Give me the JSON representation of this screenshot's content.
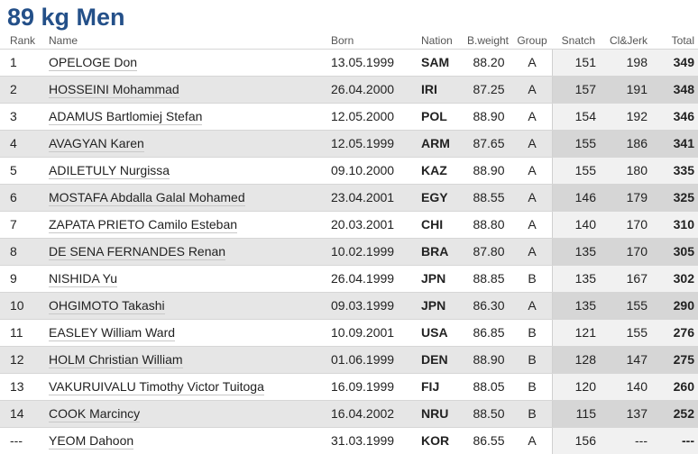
{
  "title": "89 kg Men",
  "table": {
    "columns": [
      "Rank",
      "Name",
      "Born",
      "Nation",
      "B.weight",
      "Group",
      "Snatch",
      "Cl&Jerk",
      "Total"
    ],
    "rows": [
      [
        "1",
        "OPELOGE Don",
        "13.05.1999",
        "SAM",
        "88.20",
        "A",
        "151",
        "198",
        "349"
      ],
      [
        "2",
        "HOSSEINI Mohammad",
        "26.04.2000",
        "IRI",
        "87.25",
        "A",
        "157",
        "191",
        "348"
      ],
      [
        "3",
        "ADAMUS Bartlomiej Stefan",
        "12.05.2000",
        "POL",
        "88.90",
        "A",
        "154",
        "192",
        "346"
      ],
      [
        "4",
        "AVAGYAN Karen",
        "12.05.1999",
        "ARM",
        "87.65",
        "A",
        "155",
        "186",
        "341"
      ],
      [
        "5",
        "ADILETULY Nurgissa",
        "09.10.2000",
        "KAZ",
        "88.90",
        "A",
        "155",
        "180",
        "335"
      ],
      [
        "6",
        "MOSTAFA Abdalla Galal Mohamed",
        "23.04.2001",
        "EGY",
        "88.55",
        "A",
        "146",
        "179",
        "325"
      ],
      [
        "7",
        "ZAPATA PRIETO Camilo Esteban",
        "20.03.2001",
        "CHI",
        "88.80",
        "A",
        "140",
        "170",
        "310"
      ],
      [
        "8",
        "DE SENA FERNANDES Renan",
        "10.02.1999",
        "BRA",
        "87.80",
        "A",
        "135",
        "170",
        "305"
      ],
      [
        "9",
        "NISHIDA Yu",
        "26.04.1999",
        "JPN",
        "88.85",
        "B",
        "135",
        "167",
        "302"
      ],
      [
        "10",
        "OHGIMOTO Takashi",
        "09.03.1999",
        "JPN",
        "86.30",
        "A",
        "135",
        "155",
        "290"
      ],
      [
        "11",
        "EASLEY William Ward",
        "10.09.2001",
        "USA",
        "86.85",
        "B",
        "121",
        "155",
        "276"
      ],
      [
        "12",
        "HOLM Christian William",
        "01.06.1999",
        "DEN",
        "88.90",
        "B",
        "128",
        "147",
        "275"
      ],
      [
        "13",
        "VAKURUIVALU Timothy Victor Tuitoga",
        "16.09.1999",
        "FIJ",
        "88.05",
        "B",
        "120",
        "140",
        "260"
      ],
      [
        "14",
        "COOK Marcincy",
        "16.04.2002",
        "NRU",
        "88.50",
        "B",
        "115",
        "137",
        "252"
      ],
      [
        "---",
        "YEOM Dahoon",
        "31.03.1999",
        "KOR",
        "86.55",
        "A",
        "156",
        "---",
        "---"
      ]
    ]
  }
}
